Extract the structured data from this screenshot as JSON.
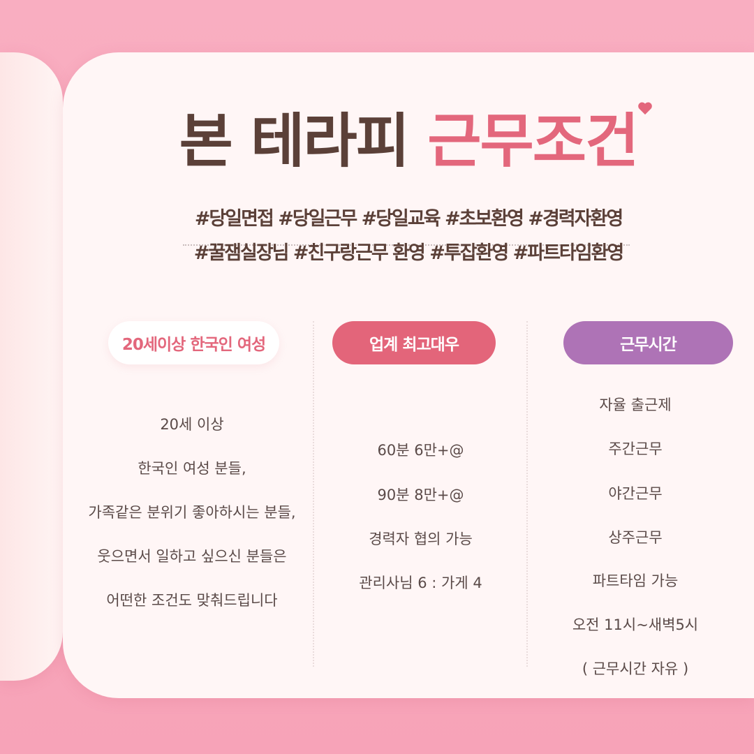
{
  "title": {
    "part1": "본 테라피",
    "part2": "근무조건"
  },
  "hashtags": [
    "#당일면접 #당일근무 #당일교육 #초보환영 #경력자환영",
    "#꿀잼실장님 #친구랑근무 환영 #투잡환영 #파트타임환영"
  ],
  "columns": [
    {
      "label": "20세이상 한국인 여성",
      "lines": [
        "20세 이상",
        "한국인 여성 분들,",
        "가족같은 분위기 좋아하시는 분들,",
        "웃으면서 일하고 싶으신 분들은",
        "어떤한 조건도 맞춰드립니다"
      ]
    },
    {
      "label": "업계 최고대우",
      "lines": [
        "60분 6만+@",
        "90분 8만+@",
        "경력자 협의 가능",
        "관리사님 6 : 가게 4"
      ]
    },
    {
      "label": "근무시간",
      "lines": [
        "자율 출근제",
        "주간근무",
        "야간근무",
        "상주근무",
        "파트타임 가능",
        "오전 11시~새벽5시",
        "( 근무시간 자유 )"
      ]
    }
  ],
  "colors": {
    "brown": "#5b4038",
    "pink": "#e3677c",
    "purple": "#ae73b6",
    "background": "#f8a9bd"
  }
}
